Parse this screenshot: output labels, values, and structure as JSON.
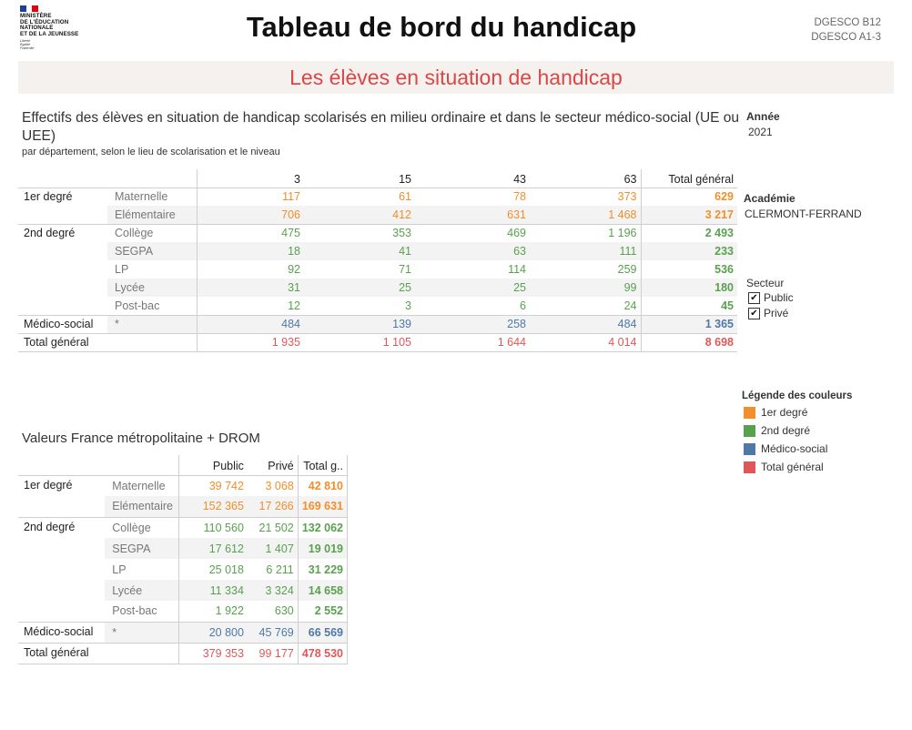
{
  "header": {
    "logo_name": "MINISTÈRE\nDE L'ÉDUCATION\nNATIONALE\nET DE LA JEUNESSE",
    "logo_motto": "Liberté\nÉgalité\nFraternité",
    "title": "Tableau de bord du handicap",
    "codes": [
      "DGESCO B12",
      "DGESCO A1-3"
    ],
    "banner": "Les élèves en situation de handicap"
  },
  "colors": {
    "premier_degre": "#f28e2b",
    "second_degre": "#59a14f",
    "medico_social": "#4e79a7",
    "total_general": "#e15759"
  },
  "section1": {
    "title": "Effectifs des élèves en situation de handicap scolarisés en milieu ordinaire et dans le secteur médico-social (UE ou UEE)",
    "subtitle": "par département, selon le lieu de scolarisation et le niveau",
    "columns": [
      "3",
      "15",
      "43",
      "63",
      "Total général"
    ],
    "rows": [
      {
        "cat": "1er degré",
        "lvl": "Maternelle",
        "vals": [
          "117",
          "61",
          "78",
          "373"
        ],
        "tot": "629"
      },
      {
        "cat": "",
        "lvl": "Elémentaire",
        "vals": [
          "706",
          "412",
          "631",
          "1 468"
        ],
        "tot": "3 217"
      },
      {
        "cat": "2nd degré",
        "lvl": "Collège",
        "vals": [
          "475",
          "353",
          "469",
          "1 196"
        ],
        "tot": "2 493"
      },
      {
        "cat": "",
        "lvl": "SEGPA",
        "vals": [
          "18",
          "41",
          "63",
          "111"
        ],
        "tot": "233"
      },
      {
        "cat": "",
        "lvl": "LP",
        "vals": [
          "92",
          "71",
          "114",
          "259"
        ],
        "tot": "536"
      },
      {
        "cat": "",
        "lvl": "Lycée",
        "vals": [
          "31",
          "25",
          "25",
          "99"
        ],
        "tot": "180"
      },
      {
        "cat": "",
        "lvl": "Post-bac",
        "vals": [
          "12",
          "3",
          "6",
          "24"
        ],
        "tot": "45"
      },
      {
        "cat": "Médico-social",
        "lvl": "*",
        "vals": [
          "484",
          "139",
          "258",
          "484"
        ],
        "tot": "1 365"
      },
      {
        "cat": "Total général",
        "lvl": "",
        "vals": [
          "1 935",
          "1 105",
          "1 644",
          "4 014"
        ],
        "tot": "8 698"
      }
    ]
  },
  "section2": {
    "title": "Valeurs France métropolitaine + DROM",
    "columns": [
      "Public",
      "Privé",
      "Total g.."
    ],
    "rows": [
      {
        "cat": "1er degré",
        "lvl": "Maternelle",
        "vals": [
          "39 742",
          "3 068"
        ],
        "tot": "42 810"
      },
      {
        "cat": "",
        "lvl": "Elémentaire",
        "vals": [
          "152 365",
          "17 266"
        ],
        "tot": "169 631"
      },
      {
        "cat": "2nd degré",
        "lvl": "Collège",
        "vals": [
          "110 560",
          "21 502"
        ],
        "tot": "132 062"
      },
      {
        "cat": "",
        "lvl": "SEGPA",
        "vals": [
          "17 612",
          "1 407"
        ],
        "tot": "19 019"
      },
      {
        "cat": "",
        "lvl": "LP",
        "vals": [
          "25 018",
          "6 211"
        ],
        "tot": "31 229"
      },
      {
        "cat": "",
        "lvl": "Lycée",
        "vals": [
          "11 334",
          "3 324"
        ],
        "tot": "14 658"
      },
      {
        "cat": "",
        "lvl": "Post-bac",
        "vals": [
          "1 922",
          "630"
        ],
        "tot": "2 552"
      },
      {
        "cat": "Médico-social",
        "lvl": "*",
        "vals": [
          "20 800",
          "45 769"
        ],
        "tot": "66 569"
      },
      {
        "cat": "Total général",
        "lvl": "",
        "vals": [
          "379 353",
          "99 177"
        ],
        "tot": "478 530"
      }
    ]
  },
  "filters": {
    "annee_label": "Année",
    "annee_value": "2021",
    "academie_label": "Académie",
    "academie_value": "CLERMONT-FERRAND",
    "secteur_label": "Secteur",
    "secteur_options": [
      {
        "label": "Public",
        "checked": true
      },
      {
        "label": "Privé",
        "checked": true
      }
    ]
  },
  "legend": {
    "title": "Légende des couleurs",
    "items": [
      "1er degré",
      "2nd degré",
      "Médico-social",
      "Total général"
    ]
  }
}
